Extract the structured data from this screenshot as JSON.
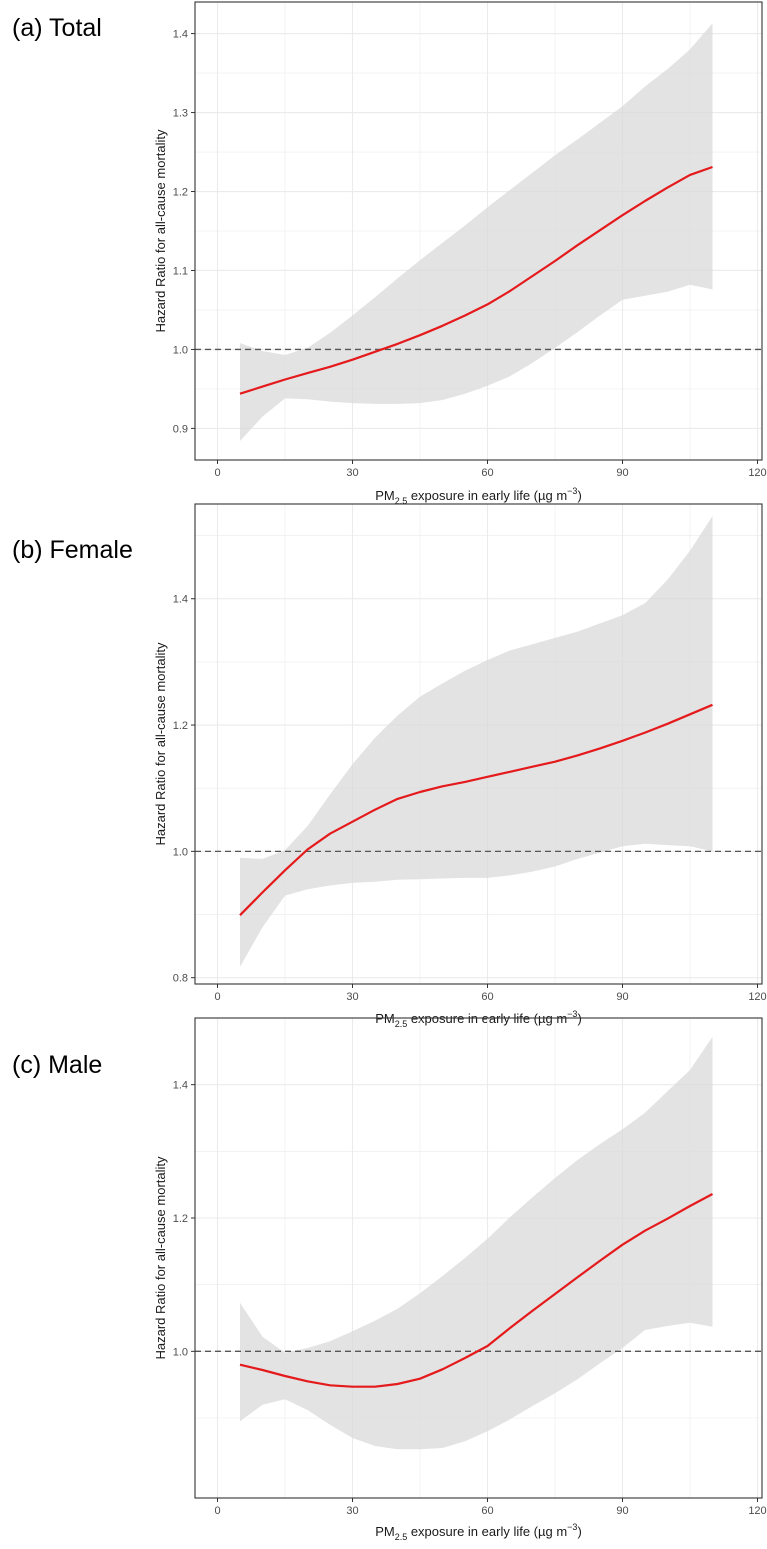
{
  "xlabel_parts": {
    "pre": "PM",
    "sub": "2.5",
    "mid": " exposure in early life (µg m",
    "sup": "−3",
    "post": ")"
  },
  "colors": {
    "line": "#e41a1c",
    "ribbon": "#d9d9d9",
    "reference": "#555555",
    "grid": "#ebebeb",
    "border": "#333333"
  },
  "chart_data": [
    {
      "type": "line",
      "panel": "(a) Total",
      "title": "(a) Total",
      "xlabel": "PM2.5 exposure in early life (µg m−3)",
      "ylabel": "Hazard Ratio for all-cause mortality",
      "xlim": [
        -5,
        121
      ],
      "ylim": [
        0.86,
        1.44
      ],
      "x_ticks": [
        0,
        30,
        60,
        90,
        120
      ],
      "x_tick_labels": [
        "0",
        "30",
        "60",
        "90",
        "120"
      ],
      "y_ticks": [
        0.9,
        1.0,
        1.1,
        1.2,
        1.3,
        1.4
      ],
      "y_tick_labels": [
        "0.9",
        "1.0",
        "1.1",
        "1.2",
        "1.3",
        "1.4"
      ],
      "reference_line": 1.0,
      "grid": true,
      "x": [
        5,
        10,
        15,
        20,
        25,
        30,
        35,
        40,
        45,
        50,
        55,
        60,
        65,
        70,
        75,
        80,
        85,
        90,
        95,
        100,
        105,
        110
      ],
      "series": [
        {
          "values": [
            0.944,
            0.953,
            0.962,
            0.97,
            0.978,
            0.987,
            0.997,
            1.007,
            1.018,
            1.03,
            1.043,
            1.057,
            1.074,
            1.093,
            1.112,
            1.132,
            1.151,
            1.17,
            1.188,
            1.205,
            1.221,
            1.231
          ]
        },
        {
          "name": "lower",
          "values": [
            0.884,
            0.915,
            0.938,
            0.937,
            0.934,
            0.932,
            0.931,
            0.931,
            0.932,
            0.936,
            0.944,
            0.954,
            0.966,
            0.983,
            1.002,
            1.022,
            1.043,
            1.063,
            1.068,
            1.073,
            1.082,
            1.076
          ]
        },
        {
          "name": "upper",
          "values": [
            1.008,
            0.998,
            0.993,
            1.002,
            1.021,
            1.043,
            1.066,
            1.09,
            1.113,
            1.135,
            1.157,
            1.18,
            1.202,
            1.224,
            1.246,
            1.266,
            1.287,
            1.308,
            1.333,
            1.355,
            1.38,
            1.413
          ]
        }
      ]
    },
    {
      "type": "line",
      "panel": "(b) Female",
      "title": "(b) Female",
      "xlabel": "PM2.5 exposure in early life (µg m−3)",
      "ylabel": "Hazard Ratio for all-cause mortality",
      "xlim": [
        -5,
        121
      ],
      "ylim": [
        0.79,
        1.55
      ],
      "x_ticks": [
        0,
        30,
        60,
        90,
        120
      ],
      "x_tick_labels": [
        "0",
        "30",
        "60",
        "90",
        "120"
      ],
      "y_ticks": [
        0.8,
        1.0,
        1.2,
        1.4
      ],
      "y_tick_labels": [
        "0.8",
        "1.0",
        "1.2",
        "1.4"
      ],
      "reference_line": 1.0,
      "grid": true,
      "x": [
        5,
        10,
        15,
        20,
        25,
        30,
        35,
        40,
        45,
        50,
        55,
        60,
        65,
        70,
        75,
        80,
        85,
        90,
        95,
        100,
        105,
        110
      ],
      "series": [
        {
          "values": [
            0.899,
            0.935,
            0.97,
            1.003,
            1.028,
            1.047,
            1.066,
            1.083,
            1.094,
            1.103,
            1.11,
            1.118,
            1.126,
            1.134,
            1.142,
            1.152,
            1.163,
            1.175,
            1.188,
            1.202,
            1.217,
            1.232
          ]
        },
        {
          "name": "lower",
          "values": [
            0.817,
            0.88,
            0.93,
            0.94,
            0.946,
            0.95,
            0.952,
            0.955,
            0.956,
            0.957,
            0.958,
            0.958,
            0.962,
            0.968,
            0.976,
            0.988,
            0.998,
            1.008,
            1.012,
            1.01,
            1.008,
            1.0
          ]
        },
        {
          "name": "upper",
          "values": [
            0.99,
            0.988,
            1.002,
            1.04,
            1.09,
            1.138,
            1.18,
            1.215,
            1.245,
            1.266,
            1.286,
            1.303,
            1.318,
            1.328,
            1.338,
            1.348,
            1.361,
            1.374,
            1.393,
            1.43,
            1.476,
            1.531
          ]
        }
      ]
    },
    {
      "type": "line",
      "panel": "(c) Male",
      "title": "(c) Male",
      "xlabel": "PM2.5 exposure in early life (µg m−3)",
      "ylabel": "Hazard Ratio for all-cause mortality",
      "xlim": [
        -5,
        121
      ],
      "ylim": [
        0.78,
        1.5
      ],
      "x_ticks": [
        0,
        30,
        60,
        90,
        120
      ],
      "x_tick_labels": [
        "0",
        "30",
        "60",
        "90",
        "120"
      ],
      "y_ticks": [
        1.0,
        1.2,
        1.4
      ],
      "y_tick_labels": [
        "1.0",
        "1.2",
        "1.4"
      ],
      "reference_line": 1.0,
      "grid": true,
      "x": [
        5,
        10,
        15,
        20,
        25,
        30,
        35,
        40,
        45,
        50,
        55,
        60,
        65,
        70,
        75,
        80,
        85,
        90,
        95,
        100,
        105,
        110
      ],
      "series": [
        {
          "values": [
            0.98,
            0.972,
            0.963,
            0.955,
            0.949,
            0.947,
            0.947,
            0.951,
            0.959,
            0.973,
            0.99,
            1.008,
            1.035,
            1.061,
            1.086,
            1.111,
            1.136,
            1.16,
            1.181,
            1.199,
            1.218,
            1.236
          ]
        },
        {
          "name": "lower",
          "values": [
            0.895,
            0.92,
            0.928,
            0.912,
            0.89,
            0.87,
            0.858,
            0.853,
            0.853,
            0.855,
            0.865,
            0.88,
            0.898,
            0.918,
            0.937,
            0.958,
            0.982,
            1.005,
            1.032,
            1.038,
            1.043,
            1.037
          ]
        },
        {
          "name": "upper",
          "values": [
            1.073,
            1.022,
            0.998,
            1.005,
            1.015,
            1.03,
            1.046,
            1.064,
            1.087,
            1.113,
            1.14,
            1.169,
            1.201,
            1.231,
            1.26,
            1.287,
            1.311,
            1.333,
            1.358,
            1.39,
            1.422,
            1.472
          ]
        }
      ]
    }
  ]
}
